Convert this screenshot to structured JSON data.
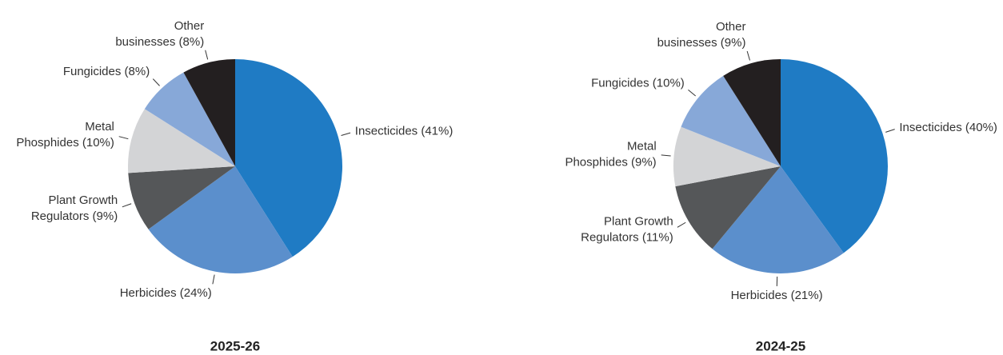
{
  "chart_data": [
    {
      "type": "pie",
      "title": "2025-26",
      "values": [
        41,
        24,
        9,
        10,
        8,
        8
      ],
      "value_labels": [
        [
          "Insecticides (41%)"
        ],
        [
          "Herbicides (24%)"
        ],
        [
          "Plant Growth",
          "Regulators (9%)"
        ],
        [
          "Metal",
          "Phosphides (10%)"
        ],
        [
          "Fungicides (8%)"
        ],
        [
          "Other",
          "businesses (8%)"
        ]
      ],
      "colors": [
        "#1f7bc4",
        "#5b8fcc",
        "#555759",
        "#d3d4d6",
        "#87a8d8",
        "#231f20"
      ]
    },
    {
      "type": "pie",
      "title": "2024-25",
      "values": [
        40,
        21,
        11,
        9,
        10,
        9
      ],
      "value_labels": [
        [
          "Insecticides (40%)"
        ],
        [
          "Herbicides (21%)"
        ],
        [
          "Plant Growth",
          "Regulators (11%)"
        ],
        [
          "Metal",
          "Phosphides (9%)"
        ],
        [
          "Fungicides (10%)"
        ],
        [
          "Other",
          "businesses (9%)"
        ]
      ],
      "colors": [
        "#1f7bc4",
        "#5b8fcc",
        "#555759",
        "#d3d4d6",
        "#87a8d8",
        "#231f20"
      ]
    }
  ]
}
